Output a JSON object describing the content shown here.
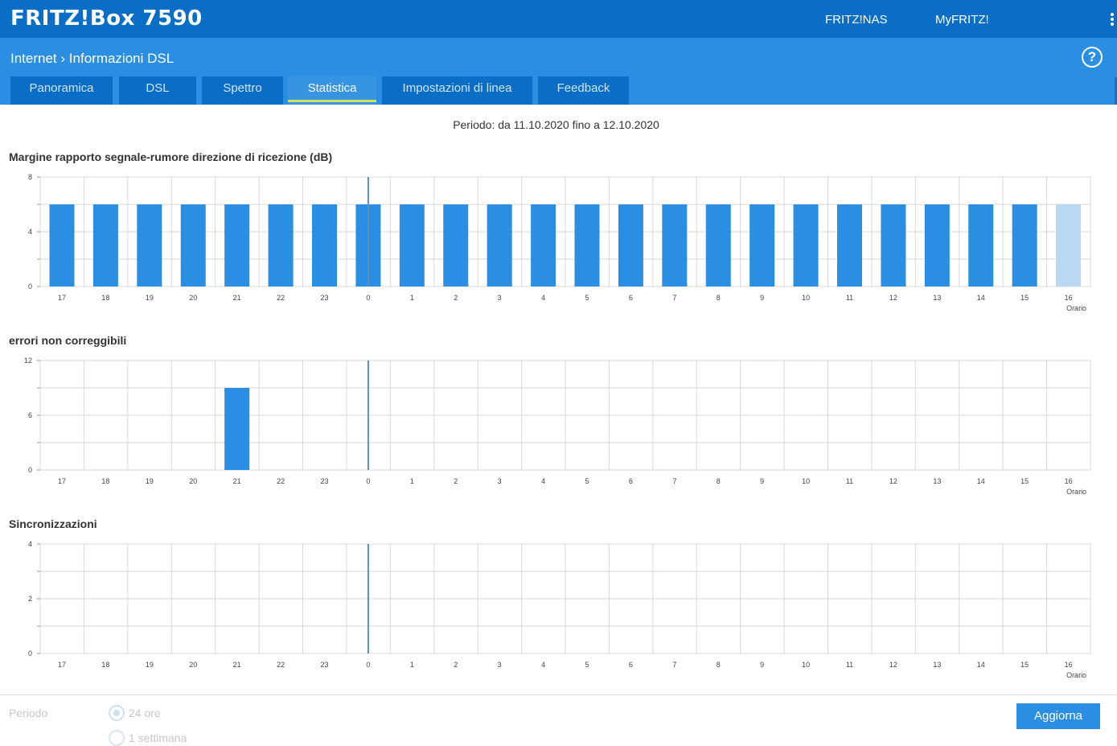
{
  "header": {
    "brand": "FRITZ!Box 7590",
    "links": [
      "FRITZ!NAS",
      "MyFRITZ!"
    ]
  },
  "breadcrumb": {
    "parent": "Internet",
    "current": "Informazioni DSL",
    "help": "?"
  },
  "tabs": [
    {
      "label": "Panoramica",
      "active": false
    },
    {
      "label": "DSL",
      "active": false
    },
    {
      "label": "Spettro",
      "active": false
    },
    {
      "label": "Statistica",
      "active": true
    },
    {
      "label": "Impostazioni di linea",
      "active": false
    },
    {
      "label": "Feedback",
      "active": false
    }
  ],
  "period_text": "Periodo: da 11.10.2020 fino a 12.10.2020",
  "colors": {
    "bar": "#2a8ee2",
    "bar_current": "#b9d8f2",
    "grid": "#d9d9d9",
    "midnight_line": "#5b8fc0"
  },
  "chart_data": [
    {
      "type": "bar",
      "title": "Margine rapporto segnale-rumore direzione di ricezione (dB)",
      "xlabel": "Orario",
      "categories": [
        "17",
        "18",
        "19",
        "20",
        "21",
        "22",
        "23",
        "0",
        "1",
        "2",
        "3",
        "4",
        "5",
        "6",
        "7",
        "8",
        "9",
        "10",
        "11",
        "12",
        "13",
        "14",
        "15",
        "16"
      ],
      "values": [
        6,
        6,
        6,
        6,
        6,
        6,
        6,
        6,
        6,
        6,
        6,
        6,
        6,
        6,
        6,
        6,
        6,
        6,
        6,
        6,
        6,
        6,
        6,
        6
      ],
      "current_index": 23,
      "ylim": [
        0,
        8
      ],
      "yticks": [
        "0",
        "4",
        "8"
      ],
      "grid": true
    },
    {
      "type": "bar",
      "title": "errori non correggibili",
      "xlabel": "Orario",
      "categories": [
        "17",
        "18",
        "19",
        "20",
        "21",
        "22",
        "23",
        "0",
        "1",
        "2",
        "3",
        "4",
        "5",
        "6",
        "7",
        "8",
        "9",
        "10",
        "11",
        "12",
        "13",
        "14",
        "15",
        "16"
      ],
      "values": [
        0,
        0,
        0,
        0,
        9,
        0,
        0,
        0,
        0,
        0,
        0,
        0,
        0,
        0,
        0,
        0,
        0,
        0,
        0,
        0,
        0,
        0,
        0,
        0
      ],
      "current_index": 23,
      "ylim": [
        0,
        12
      ],
      "yticks": [
        "0",
        "6",
        "12"
      ],
      "grid": true
    },
    {
      "type": "bar",
      "title": "Sincronizzazioni",
      "xlabel": "Orario",
      "categories": [
        "17",
        "18",
        "19",
        "20",
        "21",
        "22",
        "23",
        "0",
        "1",
        "2",
        "3",
        "4",
        "5",
        "6",
        "7",
        "8",
        "9",
        "10",
        "11",
        "12",
        "13",
        "14",
        "15",
        "16"
      ],
      "values": [
        0,
        0,
        0,
        0,
        0,
        0,
        0,
        0,
        0,
        0,
        0,
        0,
        0,
        0,
        0,
        0,
        0,
        0,
        0,
        0,
        0,
        0,
        0,
        0
      ],
      "current_index": 23,
      "ylim": [
        0,
        4
      ],
      "yticks": [
        "0",
        "2",
        "4"
      ],
      "grid": true
    }
  ],
  "footer": {
    "period_label": "Periodo",
    "option_24h": "24 ore",
    "option_second": "1 settimana",
    "refresh_button": "Aggiorna"
  }
}
